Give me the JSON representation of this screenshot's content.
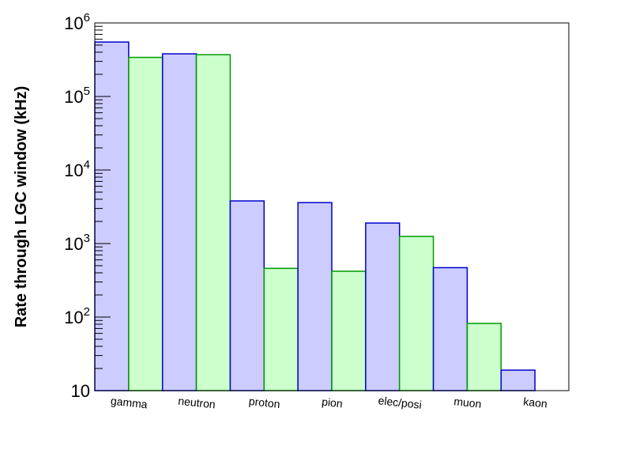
{
  "chart_data": {
    "type": "bar",
    "title": "",
    "xlabel": "",
    "ylabel": "Rate through LGC window (kHz)",
    "yscale": "log",
    "ylim": [
      10,
      1000000
    ],
    "categories": [
      "gamma",
      "neutron",
      "proton",
      "pion",
      "elec/posi",
      "muon",
      "kaon"
    ],
    "y_tick_labels": [
      {
        "base": "10",
        "exp": "",
        "value": 10
      },
      {
        "base": "10",
        "exp": "2",
        "value": 100
      },
      {
        "base": "10",
        "exp": "3",
        "value": 1000
      },
      {
        "base": "10",
        "exp": "4",
        "value": 10000
      },
      {
        "base": "10",
        "exp": "5",
        "value": 100000
      },
      {
        "base": "10",
        "exp": "6",
        "value": 1000000
      }
    ],
    "series": [
      {
        "color": "#ccccff",
        "edge": "#0000cc",
        "values": [
          550000,
          380000,
          3800,
          3600,
          1900,
          470,
          19
        ]
      },
      {
        "color": "#ccffcc",
        "edge": "#009900",
        "values": [
          340000,
          370000,
          460,
          420,
          1250,
          82,
          10
        ]
      }
    ],
    "grid": false,
    "legend": "none"
  }
}
